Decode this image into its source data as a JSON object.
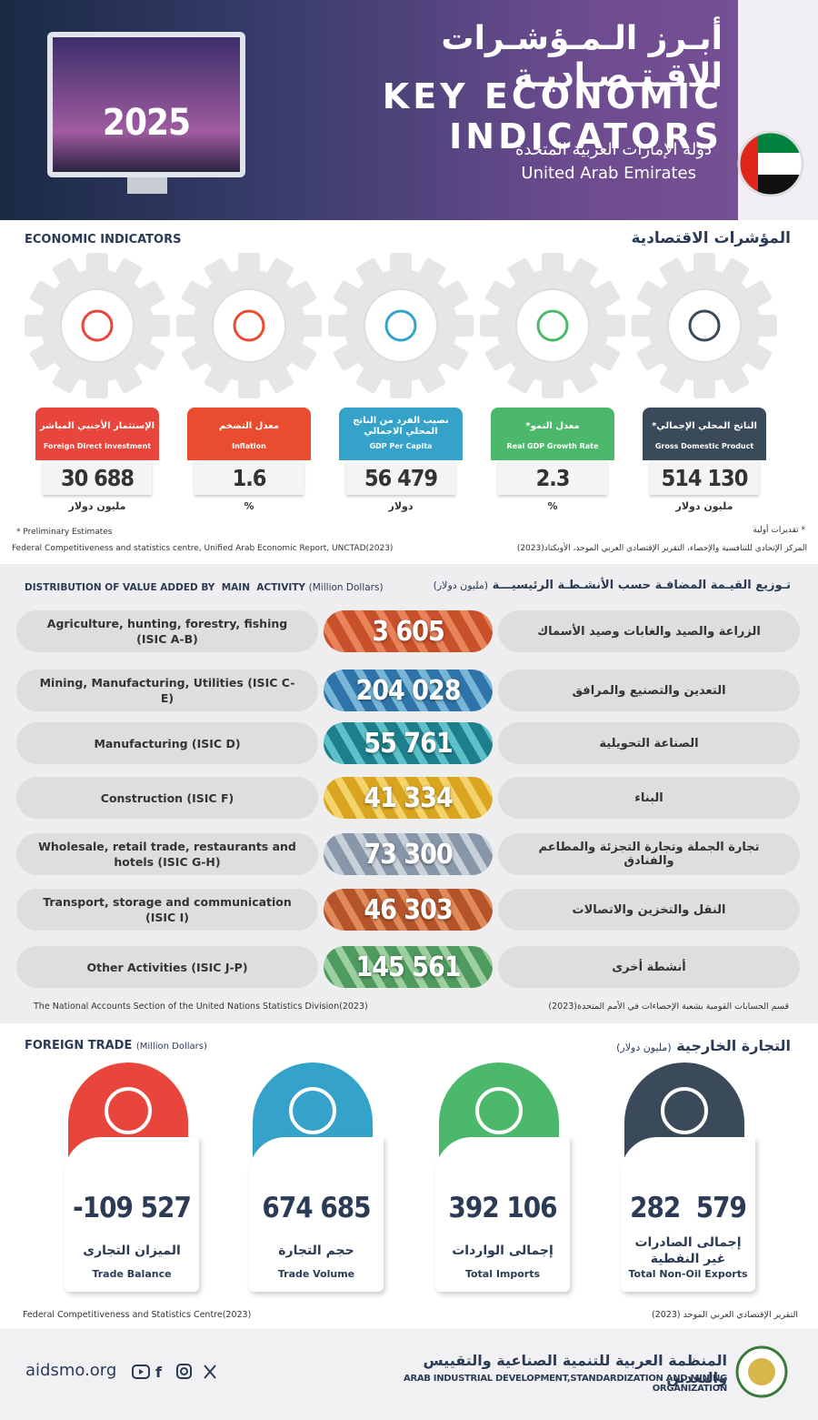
{
  "header": {
    "title_ar": "أبـرز الـمـؤشـرات الاقـتـصـاديـة",
    "title_en": "KEY ECONOMIC INDICATORS",
    "year": "2025",
    "country_ar": "دولة الإمارات العربية المتحدة",
    "country_en": "United Arab Emirates"
  },
  "economic_indicators": {
    "title_en": "ECONOMIC INDICATORS",
    "title_ar": "المؤشرات الاقتصادية",
    "items": [
      {
        "label_ar": "الإستثمار الأجنبي المباشر",
        "label_en": "Foreign Direct Investment",
        "value": "30 688",
        "unit": "مليون دولار"
      },
      {
        "label_ar": "معدل التضخم",
        "label_en": "Inflation",
        "value": "1.6",
        "unit": "%"
      },
      {
        "label_ar": "نصيب الفرد من الناتج المحلي الاجمالي",
        "label_en": "GDP Per Capita",
        "value": "56 479",
        "unit": "دولار"
      },
      {
        "label_ar": "معدل النمو*",
        "label_en": "Real GDP Growth Rate",
        "value": "2.3",
        "unit": "%"
      },
      {
        "label_ar": "الناتج المحلي الإجمالي*",
        "label_en": "Gross Domestic Product",
        "value": "514 130",
        "unit": "مليون دولار"
      }
    ],
    "note_en": "* Preliminary Estimates",
    "note_ar": "* تقديرات أولية",
    "source_en": "Federal Competitiveness and statistics centre, Unified Arab Economic Report, UNCTAD(2023)",
    "source_ar": "المركز الإتحادي للتنافسية والإحصاء، التقرير الإقتصادي العربي الموحد، الأونكتاد(2023)"
  },
  "value_added": {
    "title_en": "DISTRIBUTION OF VALUE ADDED BY  MAIN  ACTIVITY",
    "unit_en": "(Million Dollars)",
    "title_ar": "تـوزيع القيـمة المضافـة حسب الأنشـطـة الرئيسيـــة",
    "unit_ar": "(مليون دولار)",
    "rows": [
      {
        "label_en": "Agriculture, hunting, forestry, fishing (ISIC A-B)",
        "value": "3 605",
        "label_ar": "الزراعة والصيد والغابات وصيد الأسماك"
      },
      {
        "label_en": "Mining, Manufacturing, Utilities (ISIC C-E)",
        "value": "204 028",
        "label_ar": "التعدين والتصنيع والمرافق"
      },
      {
        "label_en": "Manufacturing (ISIC D)",
        "value": "55 761",
        "label_ar": "الصناعة التحويلية"
      },
      {
        "label_en": "Construction (ISIC F)",
        "value": "41 334",
        "label_ar": "البناء"
      },
      {
        "label_en": "Wholesale, retail trade, restaurants and hotels (ISIC G-H)",
        "value": "73 300",
        "label_ar": "تجارة الجملة وتجارة التجزئة والمطاعم والفنادق"
      },
      {
        "label_en": "Transport, storage and communication (ISIC I)",
        "value": "46 303",
        "label_ar": "النقل والتخزين والاتصالات"
      },
      {
        "label_en": "Other Activities (ISIC J-P)",
        "value": "145 561",
        "label_ar": "أنشطة أخرى"
      }
    ],
    "source_en": "The National Accounts Section of the United Nations Statistics Division(2023)",
    "source_ar": "قسم الحسابات القومية بشعبة الإحصاءات في الأمم المتحدة(2023)"
  },
  "foreign_trade": {
    "title_en": "FOREIGN TRADE",
    "unit_en": "(Million Dollars)",
    "title_ar": "التجارة الخارجية",
    "unit_ar": "(مليون دولار)",
    "items": [
      {
        "value": "-109 527",
        "label_ar": "الميزان التجارى",
        "label_en": "Trade Balance"
      },
      {
        "value": "674 685",
        "label_ar": "حجم التجارة",
        "label_en": "Trade Volume"
      },
      {
        "value": "392 106",
        "label_ar": "إجمالى الواردات",
        "label_en": "Total Imports"
      },
      {
        "value": "282  579",
        "label_ar": "إجمالى الصادرات غير النفطية",
        "label_en": "Total Non-Oil Exports"
      }
    ],
    "source_en": "Federal Competitiveness and Statistics Centre(2023)",
    "source_ar": "التقرير الإقتصادي العربي الموحد (2023)"
  },
  "footer": {
    "website": "aidsmo.org",
    "org_ar": "المنظمة العربية للتنمية الصناعية والتقييس والتعدين",
    "org_en": "ARAB INDUSTRIAL DEVELOPMENT,STANDARDIZATION AND MINING ORGANIZATION"
  }
}
